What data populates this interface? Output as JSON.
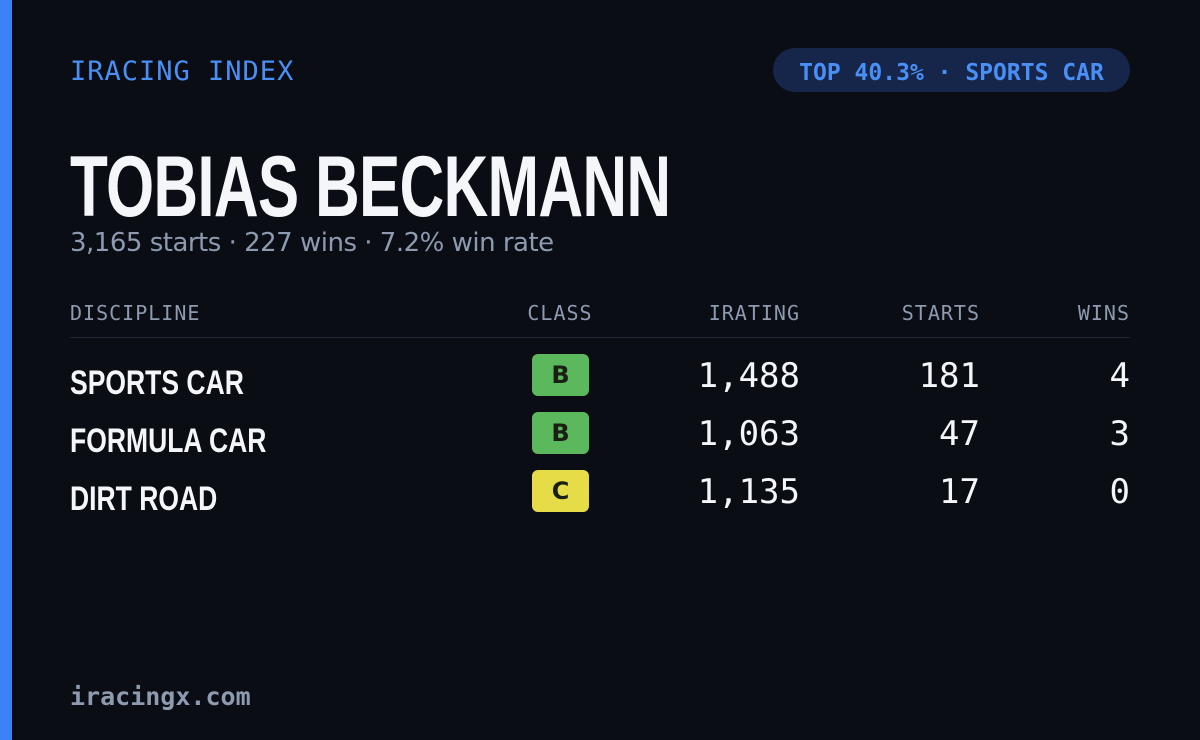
{
  "header": {
    "brand": "IRACING INDEX",
    "badge": "TOP 40.3% · SPORTS CAR"
  },
  "name": "TOBIAS BECKMANN",
  "summary": "3,165 starts · 227 wins · 7.2% win rate",
  "table": {
    "columns": [
      "DISCIPLINE",
      "CLASS",
      "IRATING",
      "STARTS",
      "WINS"
    ],
    "rows": [
      [
        "SPORTS CAR",
        "B",
        "1,488",
        "181",
        "4"
      ],
      [
        "FORMULA CAR",
        "B",
        "1,063",
        "47",
        "3"
      ],
      [
        "DIRT ROAD",
        "C",
        "1,135",
        "17",
        "0"
      ]
    ],
    "class_colors": {
      "B": "#5cb85c",
      "C": "#e6dc48"
    }
  },
  "footer": "iracingx.com"
}
